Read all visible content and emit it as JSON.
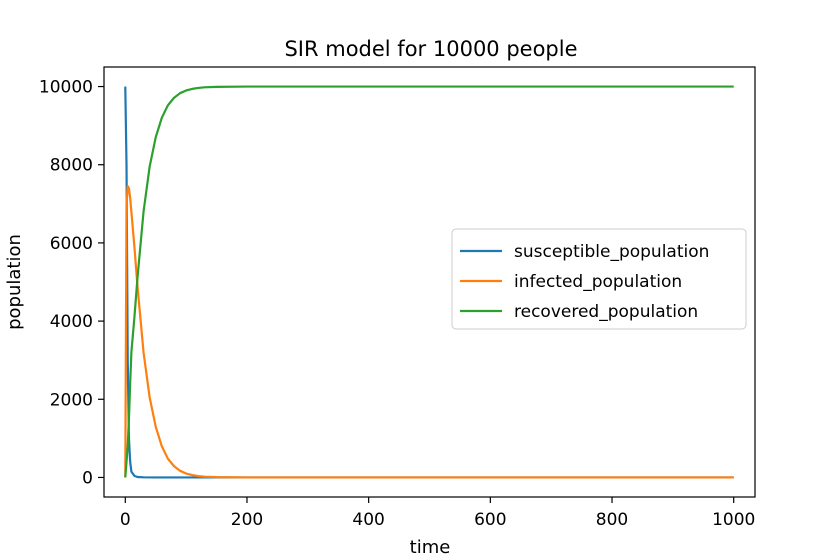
{
  "chart_data": {
    "type": "line",
    "title": "SIR model for 10000 people",
    "xlabel": "time",
    "ylabel": "population",
    "xlim": [
      -35,
      1035
    ],
    "ylim": [
      -500,
      10500
    ],
    "xticks": [
      0,
      200,
      400,
      600,
      800,
      1000
    ],
    "yticks": [
      0,
      2000,
      4000,
      6000,
      8000,
      10000
    ],
    "grid": false,
    "legend_position": "center-right",
    "series": [
      {
        "name": "susceptible_population",
        "color": "#1f77b4",
        "x": [
          0,
          2,
          4,
          6,
          8,
          10,
          15,
          20,
          30,
          50,
          100,
          200,
          400,
          600,
          800,
          1000
        ],
        "y": [
          10000,
          8000,
          3000,
          1000,
          400,
          150,
          40,
          12,
          4,
          1,
          0,
          0,
          0,
          0,
          0,
          0
        ]
      },
      {
        "name": "infected_population",
        "color": "#ff7f0e",
        "x": [
          0,
          2,
          4,
          6,
          8,
          10,
          15,
          20,
          30,
          40,
          50,
          60,
          70,
          80,
          90,
          100,
          110,
          120,
          130,
          150,
          200,
          300,
          500,
          1000
        ],
        "y": [
          0,
          7000,
          7450,
          7400,
          7150,
          6800,
          5900,
          4900,
          3200,
          2050,
          1300,
          800,
          480,
          290,
          170,
          100,
          60,
          35,
          20,
          8,
          1,
          0,
          0,
          0
        ]
      },
      {
        "name": "recovered_population",
        "color": "#2ca02c",
        "x": [
          0,
          2,
          4,
          6,
          8,
          10,
          15,
          20,
          30,
          40,
          50,
          60,
          70,
          80,
          90,
          100,
          110,
          120,
          130,
          150,
          200,
          300,
          500,
          1000
        ],
        "y": [
          0,
          400,
          800,
          1500,
          2400,
          3200,
          4100,
          5100,
          6800,
          7950,
          8700,
          9200,
          9520,
          9710,
          9830,
          9900,
          9940,
          9965,
          9980,
          9992,
          9999,
          10000,
          10000,
          10000
        ]
      }
    ]
  }
}
